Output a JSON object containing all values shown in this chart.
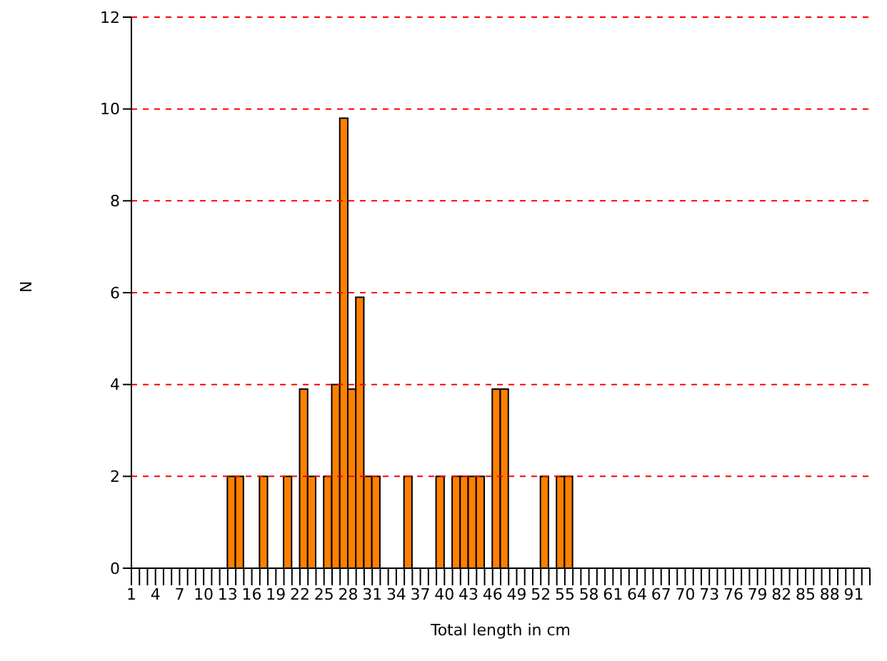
{
  "chart_data": {
    "type": "histogram",
    "xlabel": "Total length in cm",
    "ylabel": "N",
    "bins": [
      1,
      2,
      3,
      4,
      5,
      6,
      7,
      8,
      9,
      10,
      11,
      12,
      13,
      14,
      15,
      16,
      17,
      18,
      19,
      20,
      21,
      22,
      23,
      24,
      25,
      26,
      27,
      28,
      29,
      30,
      31,
      32,
      33,
      34,
      35,
      36,
      37,
      38,
      39,
      40,
      41,
      42,
      43,
      44,
      45,
      46,
      47,
      48,
      49,
      50,
      51,
      52,
      53,
      54,
      55,
      56,
      57,
      58,
      59,
      60,
      61,
      62,
      63,
      64,
      65,
      66,
      67,
      68,
      69,
      70,
      71,
      72,
      73,
      74,
      75,
      76,
      77,
      78,
      79,
      80,
      81,
      82,
      83,
      84,
      85,
      86,
      87,
      88,
      89,
      90,
      91,
      92,
      93
    ],
    "values": [
      0,
      0,
      0,
      0,
      0,
      0,
      0,
      0,
      0,
      0,
      0,
      0,
      2,
      2,
      0,
      0,
      2,
      0,
      0,
      2,
      0,
      3.9,
      2,
      0,
      2,
      4,
      9.8,
      3.9,
      5.9,
      2,
      2,
      0,
      0,
      0,
      2,
      0,
      0,
      0,
      2,
      0,
      2,
      2,
      2,
      2,
      0,
      3.9,
      3.9,
      0,
      0,
      0,
      0,
      2,
      0,
      2,
      2,
      0,
      0,
      0,
      0,
      0,
      0,
      0,
      0,
      0,
      0,
      0,
      0,
      0,
      0,
      0,
      0,
      0,
      0,
      0,
      0,
      0,
      0,
      0,
      0,
      0,
      0,
      0,
      0,
      0,
      0,
      0,
      0,
      0,
      0,
      0,
      0,
      0
    ],
    "color": "#ff8000",
    "xlim": [
      1,
      93
    ],
    "xticks": [
      1,
      {
        "value": 2,
        "label": null
      },
      {
        "value": 3,
        "label": null
      },
      4,
      {
        "value": 5,
        "label": null
      },
      {
        "value": 6,
        "label": null
      },
      7,
      {
        "value": 8,
        "label": null
      },
      {
        "value": 9,
        "label": null
      },
      10,
      {
        "value": 11,
        "label": null
      },
      {
        "value": 12,
        "label": null
      },
      13,
      {
        "value": 14,
        "label": null
      },
      {
        "value": 15,
        "label": null
      },
      16,
      {
        "value": 17,
        "label": null
      },
      {
        "value": 18,
        "label": null
      },
      19,
      {
        "value": 20,
        "label": null
      },
      {
        "value": 21,
        "label": null
      },
      22,
      {
        "value": 23,
        "label": null
      },
      {
        "value": 24,
        "label": null
      },
      25,
      {
        "value": 26,
        "label": null
      },
      {
        "value": 27,
        "label": null
      },
      28,
      {
        "value": 29,
        "label": null
      },
      {
        "value": 30,
        "label": null
      },
      31,
      {
        "value": 32,
        "label": null
      },
      {
        "value": 33,
        "label": null
      },
      34,
      {
        "value": 35,
        "label": null
      },
      {
        "value": 36,
        "label": null
      },
      37,
      {
        "value": 38,
        "label": null
      },
      {
        "value": 39,
        "label": null
      },
      40,
      {
        "value": 41,
        "label": null
      },
      {
        "value": 42,
        "label": null
      },
      43,
      {
        "value": 44,
        "label": null
      },
      {
        "value": 45,
        "label": null
      },
      46,
      {
        "value": 47,
        "label": null
      },
      {
        "value": 48,
        "label": null
      },
      49,
      {
        "value": 50,
        "label": null
      },
      {
        "value": 51,
        "label": null
      },
      52,
      {
        "value": 53,
        "label": null
      },
      {
        "value": 54,
        "label": null
      },
      55,
      {
        "value": 56,
        "label": null
      },
      {
        "value": 57,
        "label": null
      },
      58,
      {
        "value": 59,
        "label": null
      },
      {
        "value": 60,
        "label": null
      },
      61,
      {
        "value": 62,
        "label": null
      },
      {
        "value": 63,
        "label": null
      },
      64,
      {
        "value": 65,
        "label": null
      },
      {
        "value": 66,
        "label": null
      },
      67,
      {
        "value": 68,
        "label": null
      },
      {
        "value": 69,
        "label": null
      },
      70,
      {
        "value": 71,
        "label": null
      },
      {
        "value": 72,
        "label": null
      },
      73,
      {
        "value": 74,
        "label": null
      },
      {
        "value": 75,
        "label": null
      },
      76,
      {
        "value": 77,
        "label": null
      },
      {
        "value": 78,
        "label": null
      },
      79,
      {
        "value": 80,
        "label": null
      },
      {
        "value": 81,
        "label": null
      },
      82,
      {
        "value": 83,
        "label": null
      },
      {
        "value": 84,
        "label": null
      },
      85,
      {
        "value": 86,
        "label": null
      },
      {
        "value": 87,
        "label": null
      },
      88,
      {
        "value": 89,
        "label": null
      },
      {
        "value": 90,
        "label": null
      },
      91,
      {
        "value": 92,
        "label": null
      },
      {
        "value": 93,
        "label": null
      }
    ],
    "ylim": [
      0,
      12
    ],
    "yticks": [
      0,
      2,
      4,
      6,
      8,
      10,
      12
    ],
    "grid": "y"
  }
}
